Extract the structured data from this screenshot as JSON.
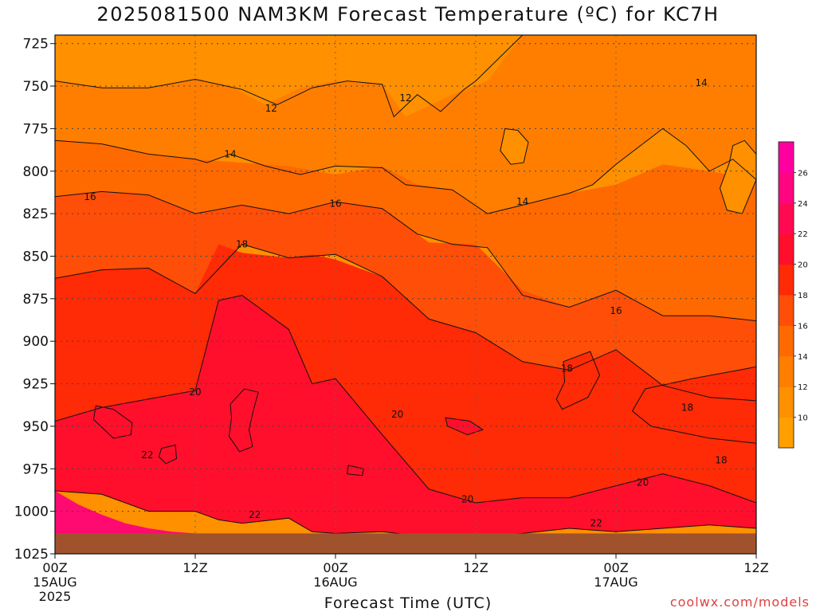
{
  "title": "2025081500 NAM3KM Forecast Temperature (ºC) for KC7H",
  "credit": "coolwx.com/models",
  "chart_data": {
    "type": "contour",
    "title": "2025081500 NAM3KM Forecast Temperature (ºC) for KC7H",
    "xlabel": "Forecast Time (UTC)",
    "ylabel": "",
    "x_ticks": [
      {
        "hour": 0,
        "label": "00Z",
        "sub": [
          "15AUG",
          "2025"
        ]
      },
      {
        "hour": 12,
        "label": "12Z",
        "sub": []
      },
      {
        "hour": 24,
        "label": "00Z",
        "sub": [
          "16AUG"
        ]
      },
      {
        "hour": 36,
        "label": "12Z",
        "sub": []
      },
      {
        "hour": 48,
        "label": "00Z",
        "sub": [
          "17AUG"
        ]
      },
      {
        "hour": 60,
        "label": "12Z",
        "sub": []
      }
    ],
    "xlim": [
      0,
      60
    ],
    "y_ticks": [
      725,
      750,
      775,
      800,
      825,
      850,
      875,
      900,
      925,
      950,
      975,
      1000,
      1025
    ],
    "ylim": [
      1025,
      720
    ],
    "y_units": "hPa",
    "grid": true,
    "contour_levels": [
      10,
      12,
      14,
      16,
      18,
      20,
      22,
      24,
      26
    ],
    "colorbar": {
      "labels": [
        10,
        12,
        14,
        16,
        18,
        20,
        22,
        24,
        26
      ],
      "colors": [
        "#ffa000",
        "#ff9000",
        "#ff7e00",
        "#ff6a00",
        "#ff4e08",
        "#ff2a06",
        "#ff0f2c",
        "#ff0a52",
        "#ff0580",
        "#ff00a0"
      ]
    },
    "contour_labels": [
      {
        "text": "12",
        "hour": 18.5,
        "p": 763
      },
      {
        "text": "12",
        "hour": 30.0,
        "p": 757
      },
      {
        "text": "14",
        "hour": 15.0,
        "p": 790
      },
      {
        "text": "14",
        "hour": 40.0,
        "p": 818
      },
      {
        "text": "14",
        "hour": 55.3,
        "p": 748
      },
      {
        "text": "16",
        "hour": 3.0,
        "p": 815
      },
      {
        "text": "16",
        "hour": 24.0,
        "p": 819
      },
      {
        "text": "16",
        "hour": 48.0,
        "p": 882
      },
      {
        "text": "18",
        "hour": 16.0,
        "p": 843
      },
      {
        "text": "18",
        "hour": 43.8,
        "p": 916
      },
      {
        "text": "18",
        "hour": 54.1,
        "p": 939
      },
      {
        "text": "18",
        "hour": 57.0,
        "p": 970
      },
      {
        "text": "20",
        "hour": 12.0,
        "p": 930
      },
      {
        "text": "20",
        "hour": 29.3,
        "p": 943
      },
      {
        "text": "20",
        "hour": 35.3,
        "p": 993
      },
      {
        "text": "20",
        "hour": 50.3,
        "p": 983
      },
      {
        "text": "22",
        "hour": 7.9,
        "p": 967
      },
      {
        "text": "22",
        "hour": 17.1,
        "p": 1002
      },
      {
        "text": "22",
        "hour": 46.3,
        "p": 1007
      }
    ],
    "layers": [
      {
        "level": 12,
        "color": "#ff9000",
        "hours": [
          0,
          4,
          8,
          12,
          16,
          19,
          22,
          25,
          28,
          29,
          31,
          33,
          35,
          36,
          40,
          44,
          48,
          52,
          56,
          60
        ],
        "p_upper": [
          720,
          720,
          720,
          720,
          720,
          720,
          720,
          720,
          720,
          720,
          720,
          720,
          720,
          720,
          720,
          720,
          720,
          720,
          720,
          720
        ],
        "p_lower": [
          747,
          751,
          751,
          746,
          752,
          761,
          751,
          747,
          749,
          768,
          755,
          765,
          752,
          747,
          720,
          720,
          720,
          720,
          720,
          720
        ]
      },
      {
        "level": 14,
        "color": "#ff7e00",
        "hours": [
          0,
          4,
          8,
          12,
          13,
          15,
          18,
          21,
          24,
          28,
          30,
          34,
          37,
          40,
          44,
          46,
          48,
          52,
          54,
          56,
          58,
          60
        ],
        "p_upper": [
          747,
          751,
          751,
          746,
          747,
          750,
          761,
          751,
          747,
          749,
          768,
          755,
          747,
          720,
          720,
          720,
          720,
          720,
          720,
          720,
          720,
          720
        ],
        "p_lower": [
          782,
          784,
          790,
          793,
          795,
          790,
          797,
          802,
          797,
          798,
          808,
          811,
          825,
          820,
          813,
          808,
          796,
          775,
          785,
          800,
          793,
          805
        ]
      },
      {
        "level": 16,
        "color": "#ff6a00",
        "hours": [
          0,
          4,
          8,
          12,
          16,
          20,
          24,
          28,
          31,
          34,
          37,
          40,
          44,
          48,
          52,
          56,
          60
        ],
        "p_upper": [
          782,
          784,
          790,
          793,
          795,
          797,
          802,
          797,
          808,
          811,
          825,
          820,
          813,
          808,
          796,
          800,
          805
        ],
        "p_lower": [
          815,
          812,
          814,
          825,
          820,
          825,
          818,
          822,
          837,
          843,
          845,
          873,
          880,
          870,
          885,
          885,
          888
        ]
      },
      {
        "level": 18,
        "color": "#ff4e08",
        "hours": [
          0,
          4,
          8,
          12,
          16,
          20,
          24,
          28,
          32,
          36,
          40,
          44,
          48,
          52,
          56,
          60
        ],
        "p_upper": [
          815,
          812,
          814,
          825,
          820,
          825,
          818,
          822,
          842,
          843,
          870,
          880,
          870,
          885,
          885,
          888
        ],
        "p_lower": [
          863,
          858,
          857,
          872,
          843,
          851,
          849,
          862,
          887,
          895,
          912,
          917,
          905,
          926,
          933,
          935
        ]
      },
      {
        "level": 20,
        "color": "#ff2a06",
        "hours": [
          0,
          4,
          8,
          12,
          14,
          16,
          20,
          22,
          24,
          28,
          32,
          36,
          40,
          44,
          48,
          52,
          56,
          60
        ],
        "p_upper": [
          863,
          858,
          857,
          872,
          843,
          848,
          851,
          849,
          852,
          862,
          887,
          895,
          912,
          917,
          905,
          926,
          933,
          935
        ],
        "p_lower": [
          947,
          939,
          934,
          929,
          876,
          873,
          893,
          925,
          922,
          955,
          987,
          995,
          992,
          992,
          985,
          978,
          985,
          995
        ]
      },
      {
        "level": 22,
        "color": "#ff0f2c",
        "hours": [
          0,
          4,
          8,
          12,
          14,
          16,
          20,
          22,
          24,
          28,
          32,
          36,
          40,
          44,
          48,
          52,
          56,
          60
        ],
        "p_upper": [
          947,
          939,
          934,
          929,
          876,
          873,
          893,
          925,
          922,
          955,
          987,
          995,
          992,
          992,
          985,
          978,
          985,
          995
        ],
        "p_lower": [
          988,
          990,
          1000,
          1000,
          1005,
          1007,
          1004,
          1012,
          1013,
          1012,
          1015,
          1015,
          1013,
          1010,
          1012,
          1010,
          1008,
          1010
        ]
      },
      {
        "level": 24,
        "color": "#ff0a70",
        "hours": [
          0,
          2,
          4,
          6,
          8,
          10,
          12
        ],
        "p_upper": [
          988,
          996,
          1002,
          1007,
          1010,
          1012,
          1013
        ],
        "p_lower": [
          1025,
          1025,
          1025,
          1025,
          1025,
          1025,
          1025
        ]
      }
    ],
    "islands": [
      {
        "level": 22,
        "hours": [
          15.0,
          16.2,
          17.4,
          17.0,
          16.6,
          16.9,
          15.8,
          14.9,
          15.1,
          15.0
        ],
        "ps": [
          937,
          928,
          930,
          940,
          952,
          962,
          965,
          956,
          945,
          937
        ]
      },
      {
        "level": 22,
        "hours": [
          3.5,
          5.0,
          6.6,
          6.5,
          5.0,
          3.3
        ],
        "ps": [
          938,
          940,
          948,
          955,
          957,
          946
        ]
      },
      {
        "level": 22,
        "hours": [
          9.1,
          10.3,
          10.4,
          9.5,
          8.9
        ],
        "ps": [
          963,
          961,
          969,
          972,
          968
        ]
      },
      {
        "level": 22,
        "hours": [
          33.4,
          35.5,
          36.6,
          35.3,
          33.6
        ],
        "ps": [
          945,
          947,
          952,
          955,
          950
        ]
      },
      {
        "level": 22,
        "hours": [
          25.1,
          26.4,
          26.3,
          25.0
        ],
        "ps": [
          973,
          975,
          979,
          978
        ]
      },
      {
        "level": 20,
        "hours": [
          43.5,
          45.8,
          46.6,
          45.6,
          43.4,
          42.9,
          43.6
        ],
        "ps": [
          912,
          906,
          920,
          933,
          940,
          934,
          924
        ]
      },
      {
        "level": 20,
        "hours": [
          50.5,
          54.5,
          58.5,
          60.0,
          60.0,
          56.0,
          51.0,
          49.4,
          50.5
        ],
        "ps": [
          928,
          922,
          917,
          915,
          960,
          957,
          950,
          941,
          928
        ]
      },
      {
        "level": 12,
        "hours": [
          38.5,
          39.6,
          40.5,
          40.1,
          39.0,
          38.1
        ],
        "ps": [
          775,
          776,
          783,
          795,
          796,
          788
        ]
      },
      {
        "level": 12,
        "hours": [
          58.0,
          59.0,
          60.0,
          60.0,
          58.8,
          57.5,
          56.9,
          57.7
        ],
        "ps": [
          785,
          782,
          790,
          805,
          825,
          823,
          810,
          795
        ]
      }
    ],
    "ground": {
      "color": "#a0522d",
      "p_top": 1013
    }
  }
}
